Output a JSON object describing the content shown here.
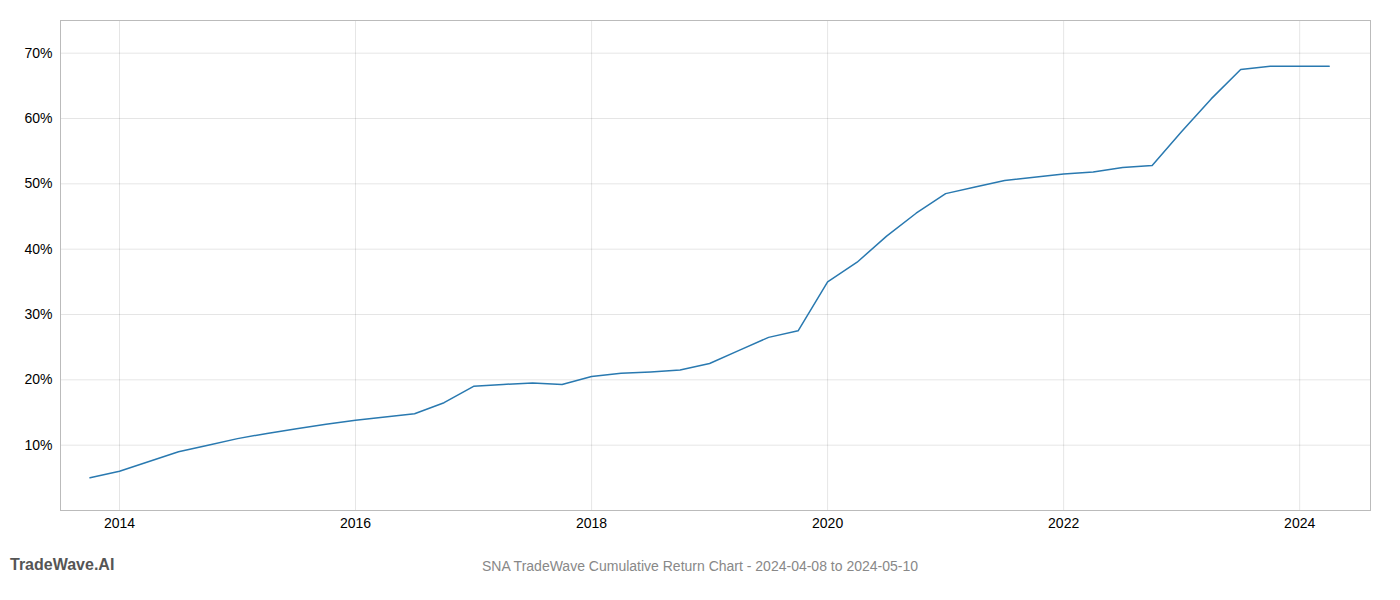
{
  "chart_data": {
    "type": "line",
    "title": "SNA TradeWave Cumulative Return Chart - 2024-04-08 to 2024-05-10",
    "annotations": [
      "TradeWave.AI"
    ],
    "color": "#2979b0",
    "grid": true,
    "x": [
      2013.75,
      2014.0,
      2014.25,
      2014.5,
      2014.75,
      2015.0,
      2015.25,
      2015.5,
      2015.75,
      2016.0,
      2016.25,
      2016.5,
      2016.75,
      2017.0,
      2017.25,
      2017.5,
      2017.75,
      2018.0,
      2018.25,
      2018.5,
      2018.75,
      2019.0,
      2019.25,
      2019.5,
      2019.75,
      2020.0,
      2020.25,
      2020.5,
      2020.75,
      2021.0,
      2021.25,
      2021.5,
      2021.75,
      2022.0,
      2022.25,
      2022.5,
      2022.75,
      2023.0,
      2023.25,
      2023.5,
      2023.75,
      2024.0,
      2024.25
    ],
    "values": [
      5.0,
      6.0,
      7.5,
      9.0,
      10.0,
      11.0,
      11.8,
      12.5,
      13.2,
      13.8,
      14.3,
      14.8,
      16.5,
      19.0,
      19.3,
      19.5,
      19.3,
      20.5,
      21.0,
      21.2,
      21.5,
      22.5,
      24.5,
      26.5,
      27.5,
      35.0,
      38.0,
      42.0,
      45.5,
      48.5,
      49.5,
      50.5,
      51.0,
      51.5,
      51.8,
      52.5,
      52.8,
      58.0,
      63.0,
      67.5,
      68.0,
      68.0,
      68.0
    ],
    "xlim": [
      2013.5,
      2024.6
    ],
    "ylim": [
      0,
      75
    ],
    "xticks": [
      2014,
      2016,
      2018,
      2020,
      2022,
      2024
    ],
    "yticks": [
      {
        "value": 10,
        "label": "10%"
      },
      {
        "value": 20,
        "label": "20%"
      },
      {
        "value": 30,
        "label": "30%"
      },
      {
        "value": 40,
        "label": "40%"
      },
      {
        "value": 50,
        "label": "50%"
      },
      {
        "value": 60,
        "label": "60%"
      },
      {
        "value": 70,
        "label": "70%"
      }
    ]
  }
}
